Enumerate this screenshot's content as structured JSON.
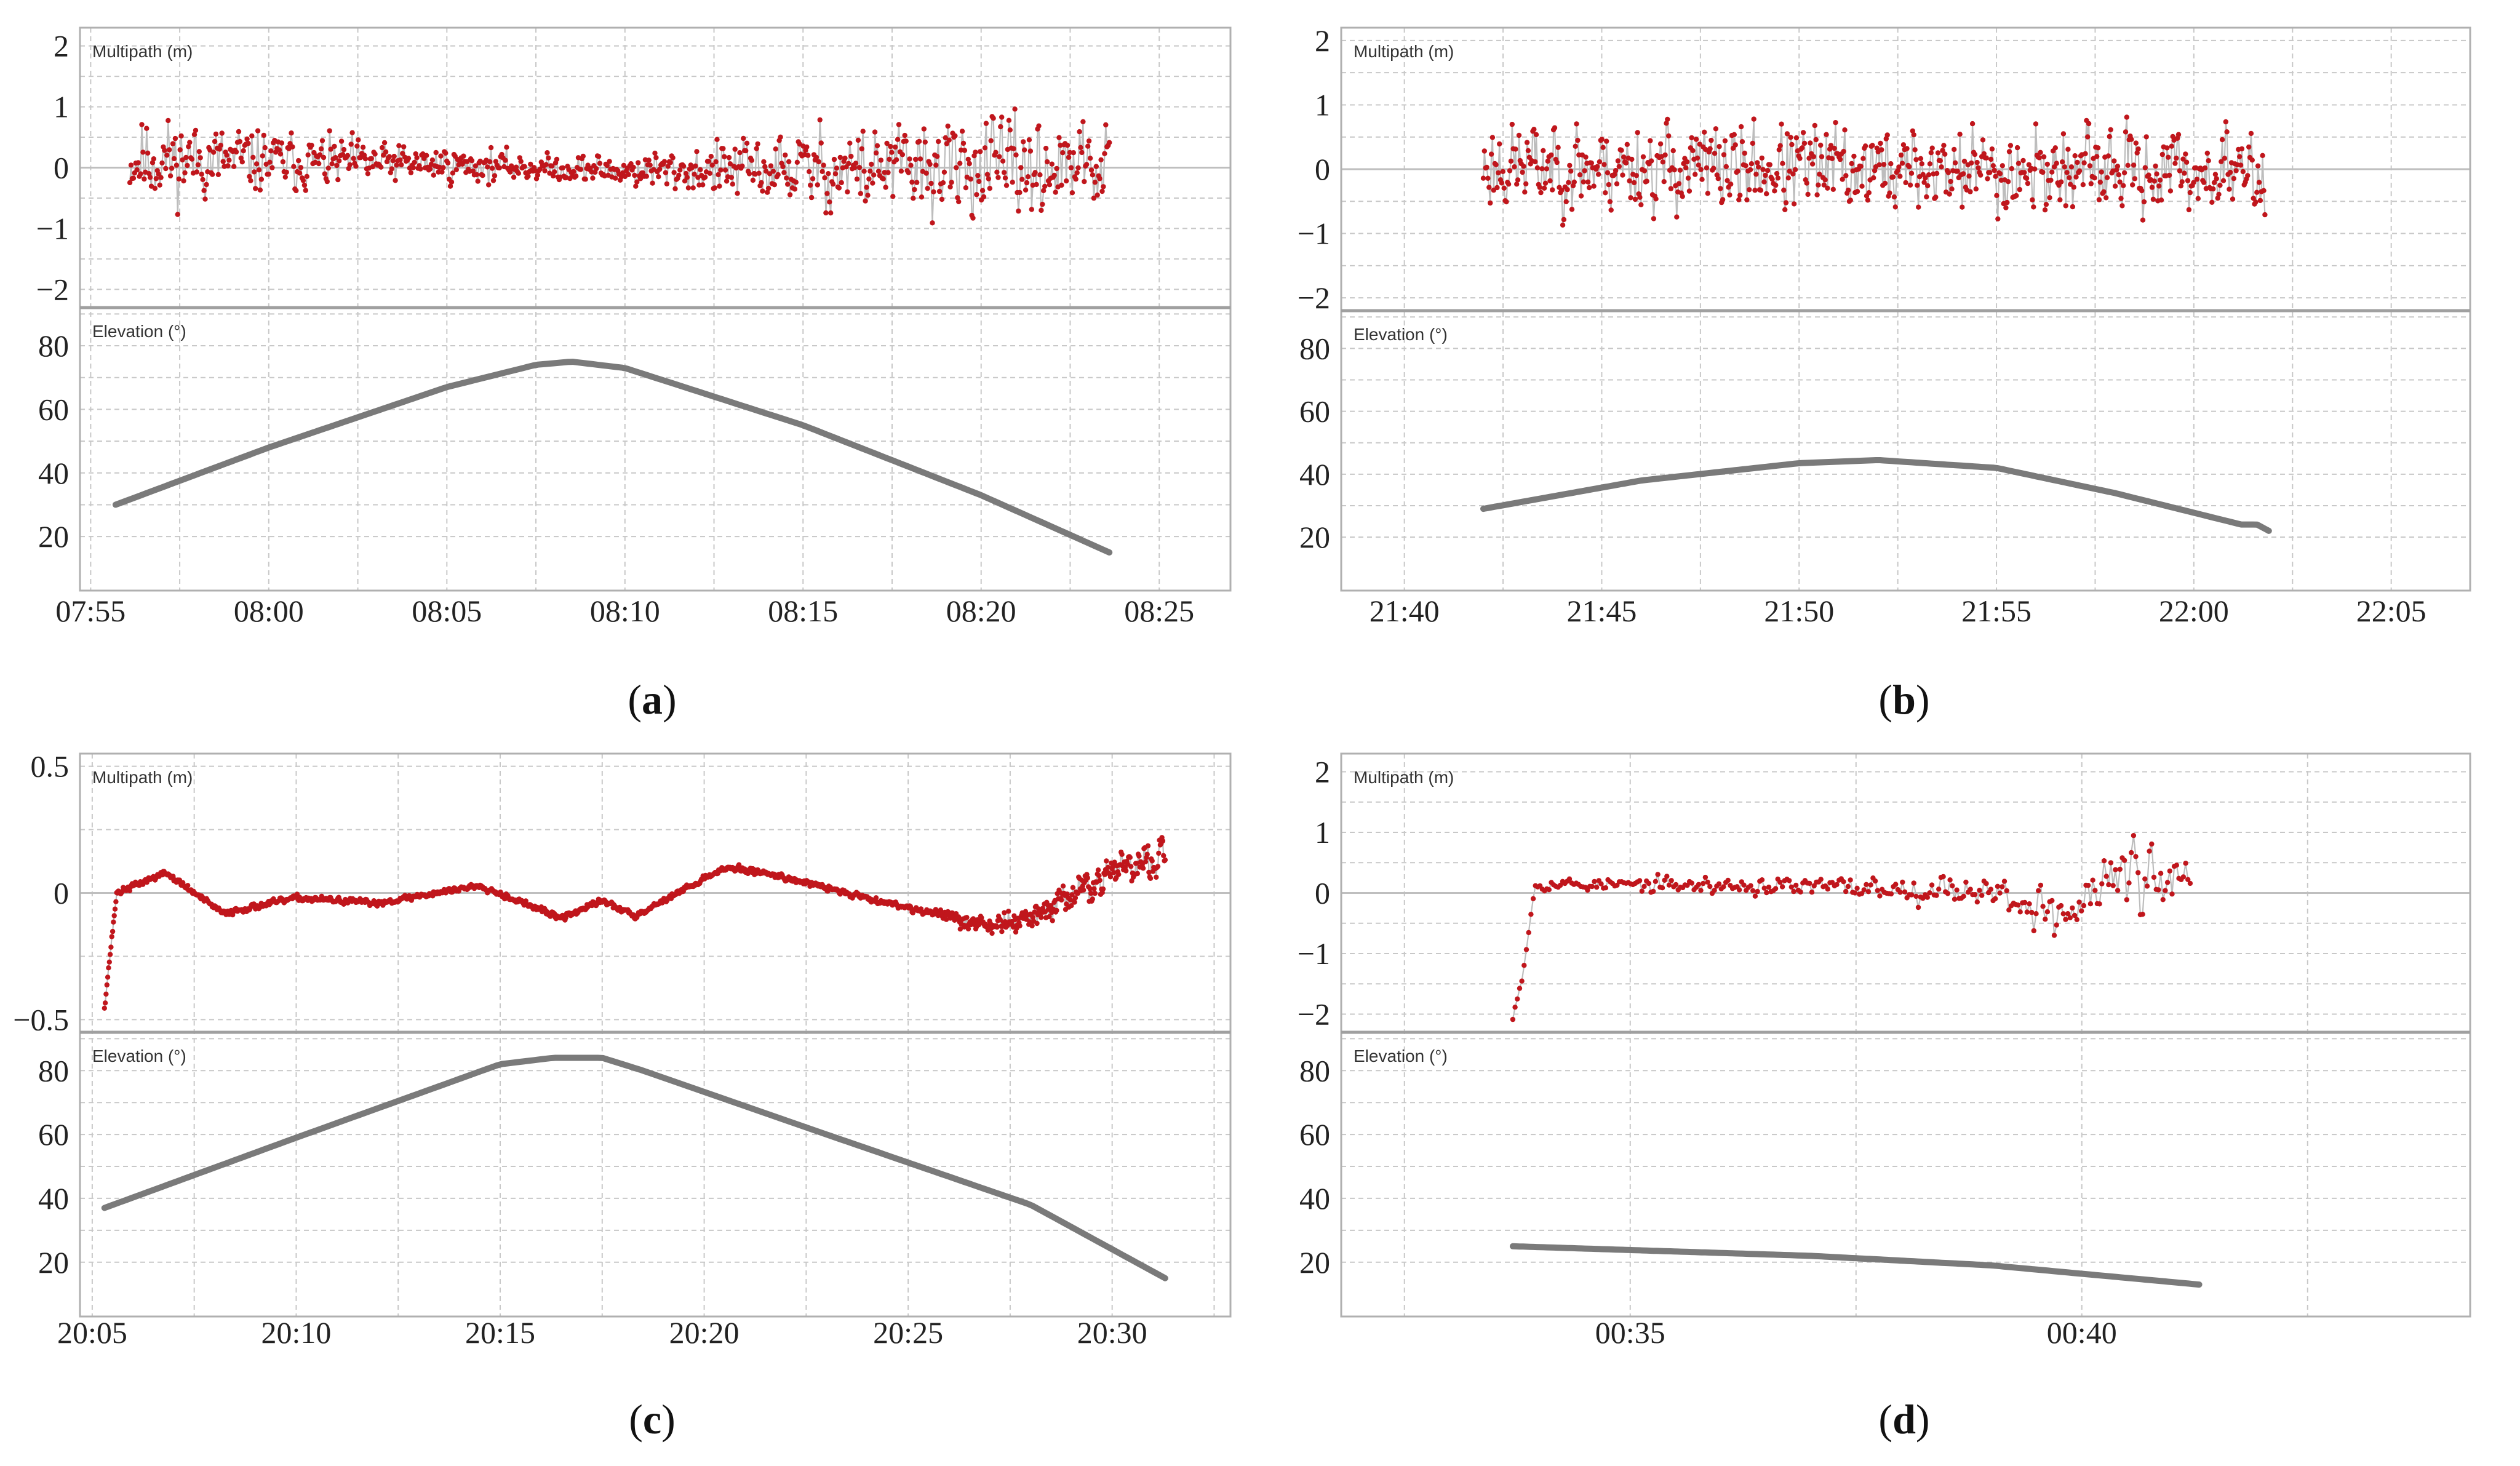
{
  "colors": {
    "multipath_line": "#bdbdbd",
    "multipath_dot": "#c0161c",
    "elevation": "#7a7a7a",
    "grid": "#c8c8c8",
    "frame": "#b0b0b0"
  },
  "chart_data": [
    {
      "id": "a",
      "caption_letter": "a",
      "type": "line",
      "x_unit": "time",
      "x_tick_labels": [
        "07:55",
        "08:00",
        "08:05",
        "08:10",
        "08:15",
        "08:20",
        "08:25"
      ],
      "x_tick_values": [
        -5,
        0,
        5,
        10,
        15,
        20,
        25
      ],
      "xlim": [
        -5.3,
        27
      ],
      "multipath": {
        "title": "Multipath (m)",
        "ylim": [
          -2.3,
          2.3
        ],
        "y_ticks": [
          -2,
          -1,
          0,
          1,
          2
        ],
        "y_tick_labels": [
          "−2",
          "−1",
          "0",
          "1",
          "2"
        ],
        "grid_y": [
          -1.5,
          -0.5,
          0.5,
          1.5
        ],
        "solid_y": 0,
        "t_start": -3.9,
        "t_end": 23.6,
        "count": 820,
        "seed": 11,
        "amplitude": [
          [
            -3.9,
            0.9
          ],
          [
            0,
            0.6
          ],
          [
            5,
            0.35
          ],
          [
            8,
            0.25
          ],
          [
            12,
            0.45
          ],
          [
            15,
            0.8
          ],
          [
            18,
            0.95
          ],
          [
            23.6,
            0.85
          ]
        ],
        "mean": [
          [
            -3.9,
            0.15
          ],
          [
            5,
            0.05
          ],
          [
            10,
            -0.05
          ],
          [
            23.6,
            0.0
          ]
        ],
        "max_abs": 2.05
      },
      "elevation": {
        "title": "Elevation (°)",
        "ylim": [
          3,
          92
        ],
        "y_ticks": [
          20,
          40,
          60,
          80
        ],
        "y_tick_labels": [
          "20",
          "40",
          "60",
          "80"
        ],
        "grid_y": [
          30,
          50,
          70,
          90
        ],
        "curve": [
          [
            -4.3,
            30
          ],
          [
            0,
            48
          ],
          [
            5,
            67
          ],
          [
            7.5,
            74
          ],
          [
            8.5,
            75
          ],
          [
            10,
            73
          ],
          [
            15,
            55
          ],
          [
            20,
            33
          ],
          [
            23.6,
            15
          ]
        ]
      }
    },
    {
      "id": "b",
      "caption_letter": "b",
      "type": "line",
      "x_unit": "time",
      "x_tick_labels": [
        "21:40",
        "21:45",
        "21:50",
        "21:55",
        "22:00",
        "22:05"
      ],
      "x_tick_values": [
        0,
        5,
        10,
        15,
        20,
        25
      ],
      "xlim": [
        -1.6,
        27
      ],
      "multipath": {
        "title": "Multipath (m)",
        "ylim": [
          -2.2,
          2.2
        ],
        "y_ticks": [
          -2,
          -1,
          0,
          1,
          2
        ],
        "y_tick_labels": [
          "−2",
          "−1",
          "0",
          "1",
          "2"
        ],
        "grid_y": [
          -1.5,
          -0.5,
          0.5,
          1.5
        ],
        "solid_y": 0,
        "t_start": 2.0,
        "t_end": 21.8,
        "count": 680,
        "seed": 23,
        "amplitude": [
          [
            2,
            0.85
          ],
          [
            10,
            0.85
          ],
          [
            21.8,
            0.75
          ]
        ],
        "mean": [
          [
            2,
            0.05
          ],
          [
            21.8,
            -0.05
          ]
        ],
        "max_abs": 2.05
      },
      "elevation": {
        "title": "Elevation (°)",
        "ylim": [
          3,
          92
        ],
        "y_ticks": [
          20,
          40,
          60,
          80
        ],
        "y_tick_labels": [
          "20",
          "40",
          "60",
          "80"
        ],
        "grid_y": [
          30,
          50,
          70,
          90
        ],
        "curve": [
          [
            2,
            29
          ],
          [
            6,
            38
          ],
          [
            10,
            43.5
          ],
          [
            12,
            44.5
          ],
          [
            15,
            42
          ],
          [
            18,
            34
          ],
          [
            21.2,
            24
          ],
          [
            21.6,
            24
          ],
          [
            21.9,
            22
          ]
        ]
      }
    },
    {
      "id": "c",
      "caption_letter": "c",
      "type": "line",
      "x_unit": "time",
      "x_tick_labels": [
        "20:05",
        "20:10",
        "20:15",
        "20:20",
        "20:25",
        "20:30"
      ],
      "x_tick_values": [
        0,
        5,
        10,
        15,
        20,
        25
      ],
      "xlim": [
        -0.3,
        27.9
      ],
      "multipath": {
        "title": "Multipath (m)",
        "ylim": [
          -0.55,
          0.55
        ],
        "y_ticks": [
          -0.5,
          0,
          0.5
        ],
        "y_tick_labels": [
          "−0.5",
          "0",
          "0.5"
        ],
        "grid_y": [
          -0.25,
          0.25
        ],
        "solid_y": 0,
        "t_start": 0.3,
        "t_end": 26.3,
        "count": 1300,
        "seed": 37,
        "amplitude": [
          [
            0.3,
            0.015
          ],
          [
            20,
            0.015
          ],
          [
            22,
            0.05
          ],
          [
            24,
            0.07
          ],
          [
            26.3,
            0.1
          ]
        ],
        "mean": [
          [
            0.3,
            -0.45
          ],
          [
            0.6,
            0.0
          ],
          [
            1.8,
            0.08
          ],
          [
            3.2,
            -0.08
          ],
          [
            5,
            -0.02
          ],
          [
            7,
            -0.04
          ],
          [
            9.5,
            0.03
          ],
          [
            11.5,
            -0.1
          ],
          [
            12.5,
            -0.03
          ],
          [
            13.3,
            -0.09
          ],
          [
            15.5,
            0.1
          ],
          [
            16.5,
            0.08
          ],
          [
            19,
            -0.02
          ],
          [
            22,
            -0.13
          ],
          [
            23,
            -0.1
          ],
          [
            25,
            0.08
          ],
          [
            26.3,
            0.15
          ]
        ],
        "max_abs": 0.5
      },
      "elevation": {
        "title": "Elevation (°)",
        "ylim": [
          3,
          92
        ],
        "y_ticks": [
          20,
          40,
          60,
          80
        ],
        "y_tick_labels": [
          "20",
          "40",
          "60",
          "80"
        ],
        "grid_y": [
          30,
          50,
          70,
          90
        ],
        "curve": [
          [
            0.3,
            37
          ],
          [
            5,
            59
          ],
          [
            10,
            82
          ],
          [
            11.3,
            84
          ],
          [
            12.5,
            84
          ],
          [
            13.5,
            80
          ],
          [
            18,
            60
          ],
          [
            23,
            38
          ],
          [
            26.3,
            15
          ]
        ]
      }
    },
    {
      "id": "d",
      "caption_letter": "d",
      "type": "line",
      "x_unit": "time",
      "x_tick_labels": [
        "00:35",
        "00:40"
      ],
      "x_tick_values": [
        0,
        5
      ],
      "xlim": [
        -3.2,
        9.3
      ],
      "multipath": {
        "title": "Multipath (m)",
        "ylim": [
          -2.3,
          2.3
        ],
        "y_ticks": [
          -2,
          -1,
          0,
          1,
          2
        ],
        "y_tick_labels": [
          "−2",
          "−1",
          "0",
          "1",
          "2"
        ],
        "grid_y": [
          -1.5,
          -0.5,
          0.5,
          1.5
        ],
        "solid_y": 0,
        "t_start": -1.3,
        "t_end": 6.2,
        "count": 300,
        "seed": 53,
        "amplitude": [
          [
            -1.3,
            0.12
          ],
          [
            0,
            0.15
          ],
          [
            2,
            0.2
          ],
          [
            4,
            0.3
          ],
          [
            4.8,
            0.6
          ],
          [
            5.4,
            0.9
          ],
          [
            6.2,
            0.5
          ]
        ],
        "mean": [
          [
            -1.3,
            -2.0
          ],
          [
            -1.2,
            -1.4
          ],
          [
            -1.05,
            0.15
          ],
          [
            2,
            0.1
          ],
          [
            4,
            0.05
          ],
          [
            4.8,
            -0.4
          ],
          [
            5.4,
            0.3
          ],
          [
            6.2,
            0.1
          ]
        ],
        "max_abs": 2.1
      },
      "elevation": {
        "title": "Elevation (°)",
        "ylim": [
          3,
          92
        ],
        "y_ticks": [
          20,
          40,
          60,
          80
        ],
        "y_tick_labels": [
          "20",
          "40",
          "60",
          "80"
        ],
        "grid_y": [
          30,
          50,
          70,
          90
        ],
        "curve": [
          [
            -1.3,
            25
          ],
          [
            2,
            22
          ],
          [
            4,
            19
          ],
          [
            6.3,
            13
          ]
        ]
      }
    }
  ]
}
